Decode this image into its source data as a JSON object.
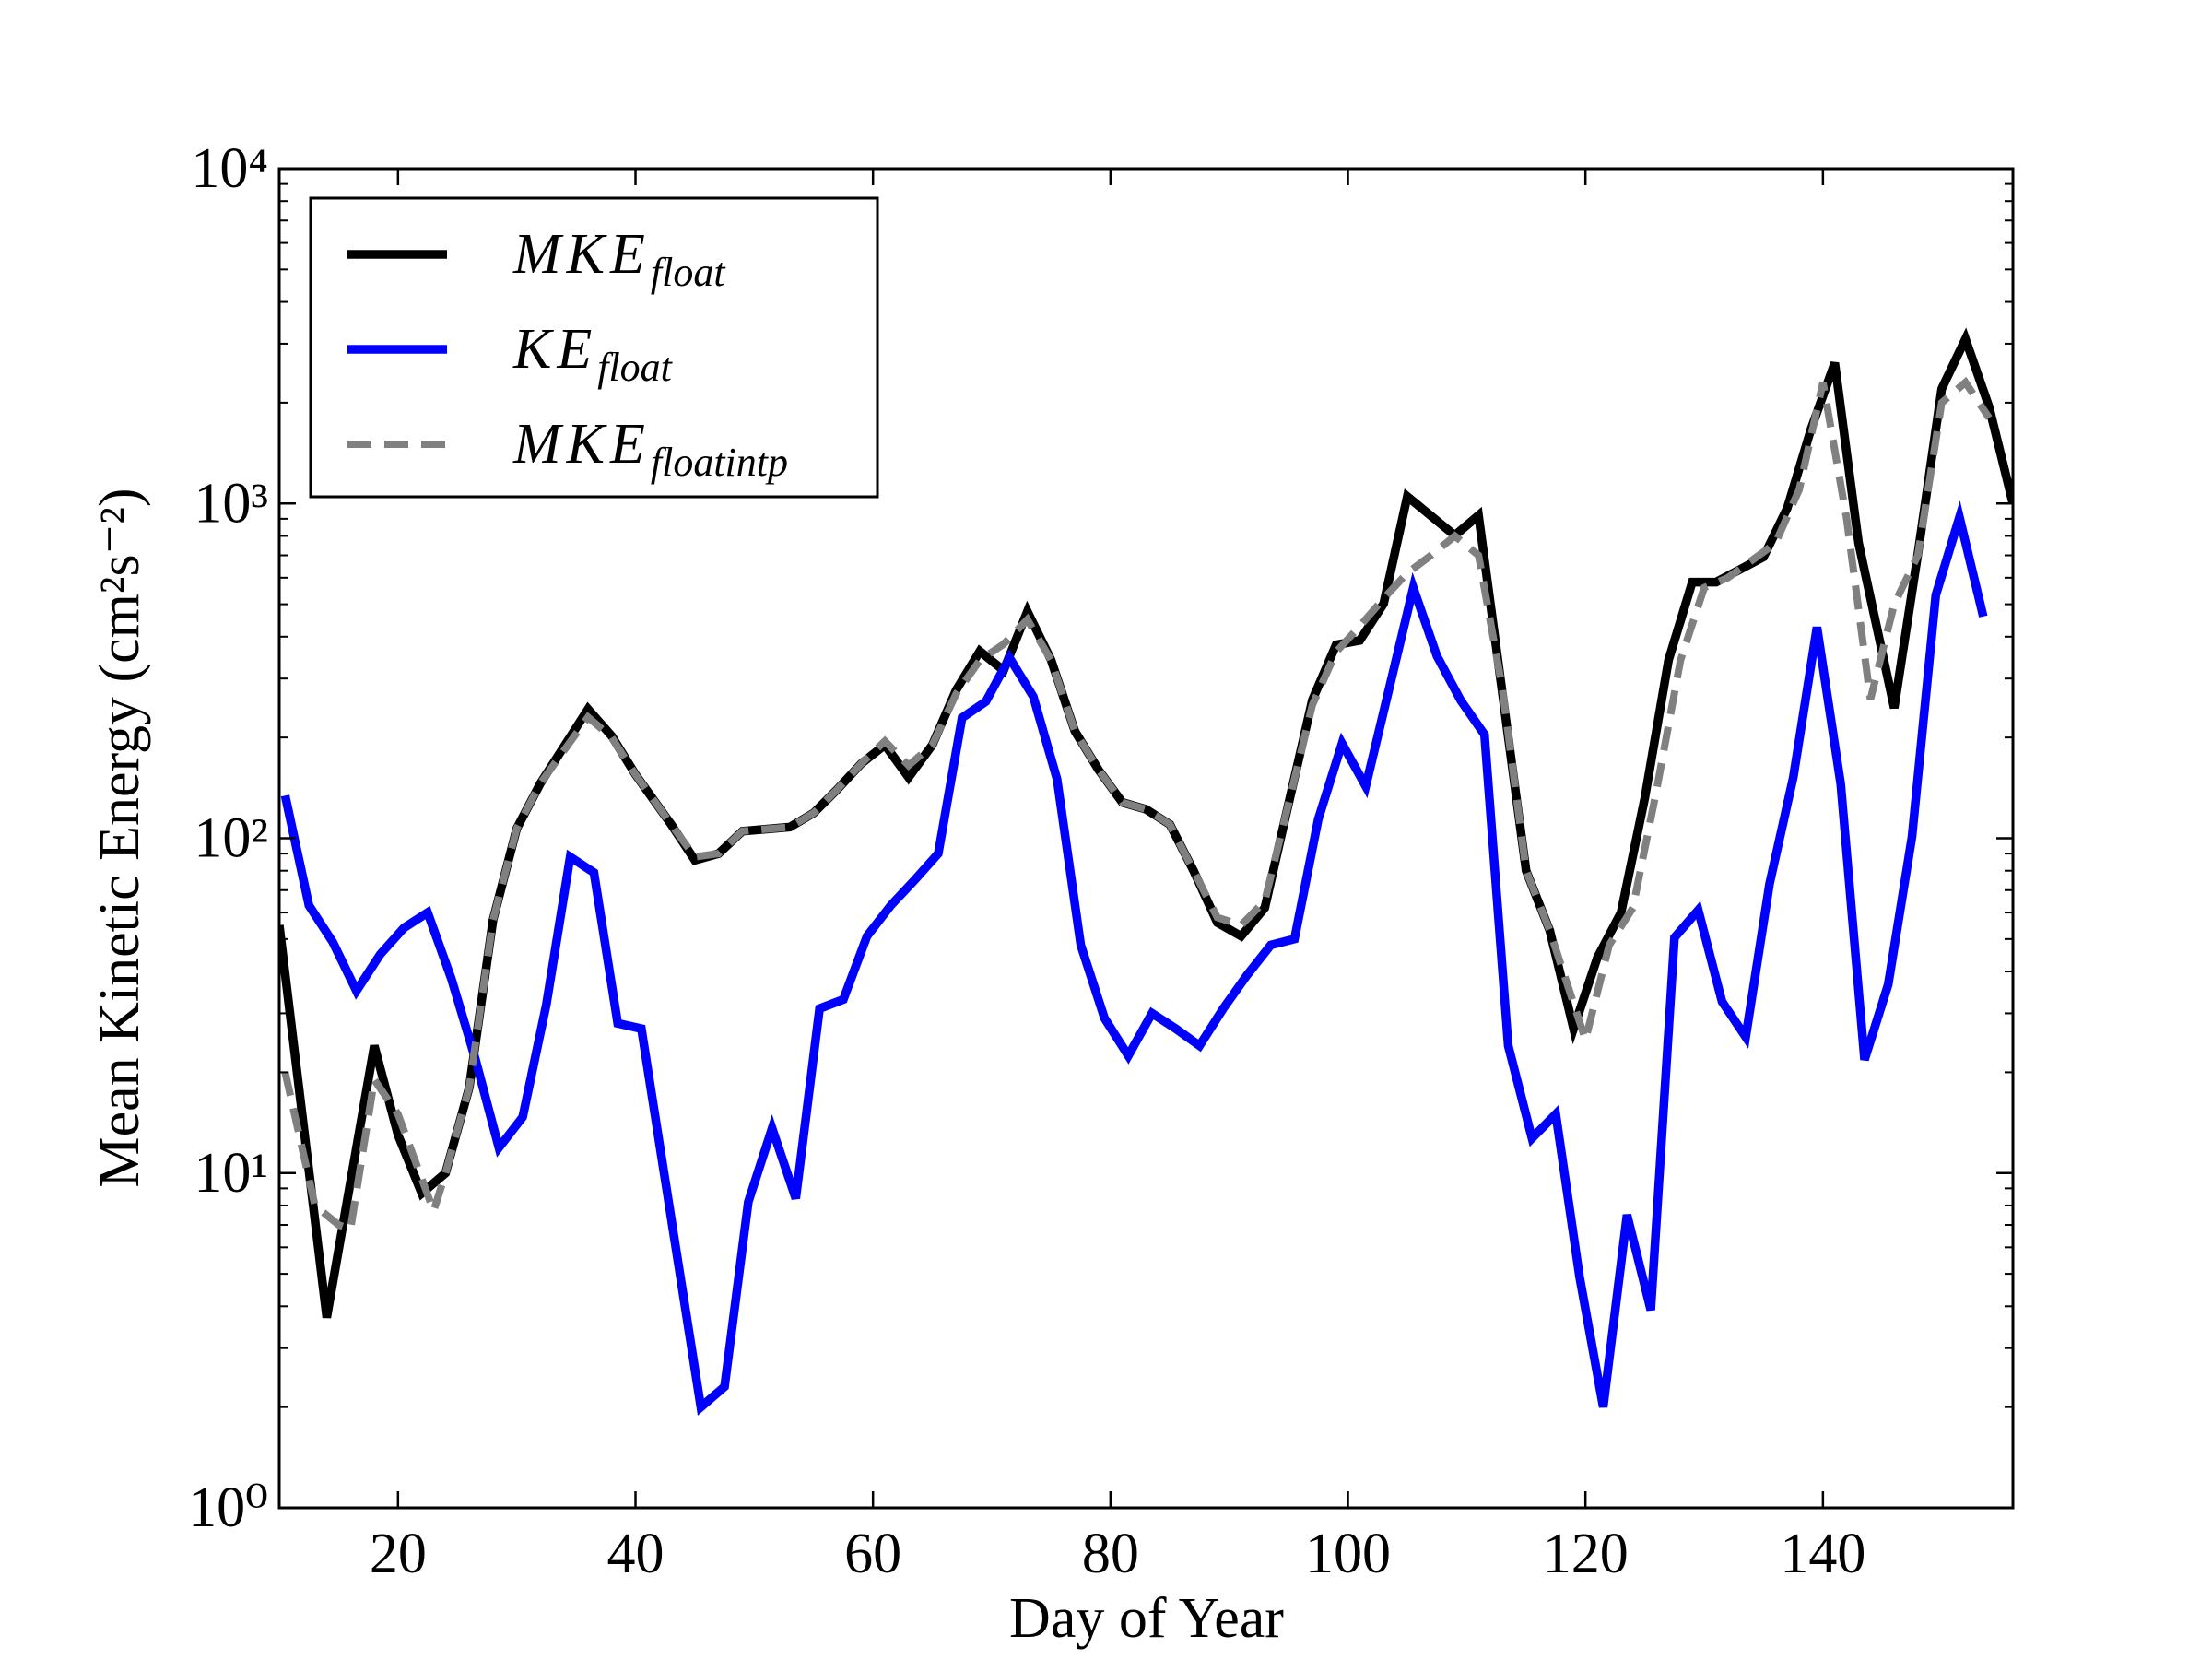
{
  "chart_data": {
    "type": "line",
    "xlabel": "Day of Year",
    "ylabel": "Mean Kinetic Energy (cm²s⁻²)",
    "log_y": true,
    "grid": false,
    "legend": "upper left",
    "xlim": [
      10,
      156
    ],
    "xticks": [
      20,
      40,
      60,
      80,
      100,
      120,
      140
    ],
    "ylim": [
      1,
      10000
    ],
    "yticks": [
      {
        "value": 1,
        "label": "10⁰"
      },
      {
        "value": 10,
        "label": "10¹"
      },
      {
        "value": 100,
        "label": "10²"
      },
      {
        "value": 1000,
        "label": "10³"
      },
      {
        "value": 10000,
        "label": "10⁴"
      }
    ],
    "series": [
      {
        "name": "MKE_float",
        "color": "#000000",
        "dash": false,
        "x": [
          10,
          14,
          18,
          20,
          22,
          24,
          26,
          28,
          30,
          32,
          36,
          38,
          40,
          43,
          45,
          47,
          49,
          53,
          55,
          57,
          59,
          61,
          63,
          65,
          67,
          69,
          71,
          73,
          75,
          77,
          79,
          81,
          83,
          85,
          87,
          89,
          91,
          93,
          95,
          97,
          99,
          101,
          103,
          105,
          109,
          111,
          113,
          115,
          117,
          119,
          121,
          123,
          125,
          127,
          129,
          131,
          135,
          137,
          139,
          141,
          143,
          146,
          148,
          150,
          152,
          154,
          156
        ],
        "values": [
          55,
          3.7,
          24,
          13,
          8.7,
          10,
          18,
          57,
          107,
          146,
          243,
          202,
          155,
          110,
          86,
          90,
          105,
          108,
          119,
          140,
          167,
          190,
          152,
          190,
          277,
          362,
          317,
          476,
          341,
          209,
          160,
          128,
          122,
          110,
          80,
          56,
          51,
          62,
          127,
          259,
          378,
          390,
          502,
          1050,
          803,
          922,
          272,
          80,
          53,
          27,
          44,
          60,
          132,
          341,
          582,
          582,
          692,
          970,
          1670,
          2630,
          763,
          245,
          708,
          2200,
          3100,
          1940,
          1000
        ]
      },
      {
        "name": "KE_float",
        "color": "#0000ff",
        "dash": false,
        "x": [
          10.5,
          12.5,
          14.5,
          16.5,
          18.5,
          20.5,
          22.5,
          24.5,
          26.5,
          28.5,
          30.5,
          32.5,
          34.5,
          36.5,
          38.5,
          40.5,
          45.5,
          47.5,
          49.5,
          51.5,
          53.5,
          55.5,
          57.5,
          59.5,
          61.5,
          63.5,
          65.5,
          67.5,
          69.5,
          71.5,
          73.5,
          75.5,
          77.5,
          79.5,
          81.5,
          83.5,
          85.5,
          87.5,
          89.5,
          91.5,
          93.5,
          95.5,
          97.5,
          99.5,
          101.5,
          105.5,
          107.5,
          109.5,
          111.5,
          113.5,
          115.5,
          117.5,
          119.5,
          121.5,
          123.5,
          125.5,
          127.5,
          129.5,
          131.5,
          133.5,
          135.5,
          137.5,
          139.5,
          141.5,
          143.5,
          145.5,
          147.5,
          149.5,
          151.5,
          153.5
        ],
        "values": [
          134,
          63,
          49,
          35,
          45,
          54,
          60,
          38,
          22,
          11.9,
          14.7,
          32,
          88,
          79,
          28,
          27,
          2.0,
          2.3,
          8.2,
          13.6,
          8.4,
          31,
          33,
          51,
          63,
          75,
          90,
          229,
          256,
          346,
          265,
          150,
          48,
          29,
          22.4,
          30,
          27,
          24,
          31,
          39,
          48,
          50,
          114,
          192,
          143,
          560,
          350,
          258,
          204,
          24,
          12.7,
          15,
          4.9,
          2.0,
          7.5,
          3.9,
          50.5,
          61,
          32.5,
          25.5,
          73,
          152,
          427,
          145,
          21.8,
          36.6,
          101,
          532,
          910,
          460
        ]
      },
      {
        "name": "MKE_floatintp",
        "color": "#808080",
        "dash": true,
        "x": [
          10.5,
          13,
          15,
          16,
          18,
          20,
          23,
          24,
          26,
          28,
          30,
          32,
          36,
          38,
          40,
          43,
          45,
          47,
          49,
          53,
          55,
          57,
          59,
          61,
          63,
          65,
          67,
          69,
          71,
          73,
          75,
          77,
          79,
          81,
          83,
          85,
          87,
          89,
          91,
          93,
          95,
          97,
          99,
          101,
          103,
          105,
          107,
          109,
          111,
          113,
          115,
          117,
          120,
          122,
          124,
          126,
          128,
          130,
          132,
          136,
          138,
          140,
          142,
          144,
          146,
          148,
          150,
          152,
          154
        ],
        "values": [
          20,
          8,
          7,
          6.8,
          19,
          15,
          7.7,
          10,
          18,
          57,
          107,
          146,
          230,
          200,
          155,
          110,
          88,
          90,
          105,
          108,
          119,
          140,
          167,
          195,
          165,
          190,
          270,
          340,
          380,
          450,
          340,
          209,
          160,
          128,
          122,
          110,
          80,
          58,
          55,
          65,
          127,
          250,
          360,
          430,
          520,
          620,
          700,
          800,
          700,
          280,
          80,
          53,
          25,
          48,
          62,
          140,
          340,
          560,
          600,
          760,
          1100,
          2300,
          900,
          260,
          500,
          700,
          2000,
          2300,
          1800
        ]
      }
    ]
  }
}
